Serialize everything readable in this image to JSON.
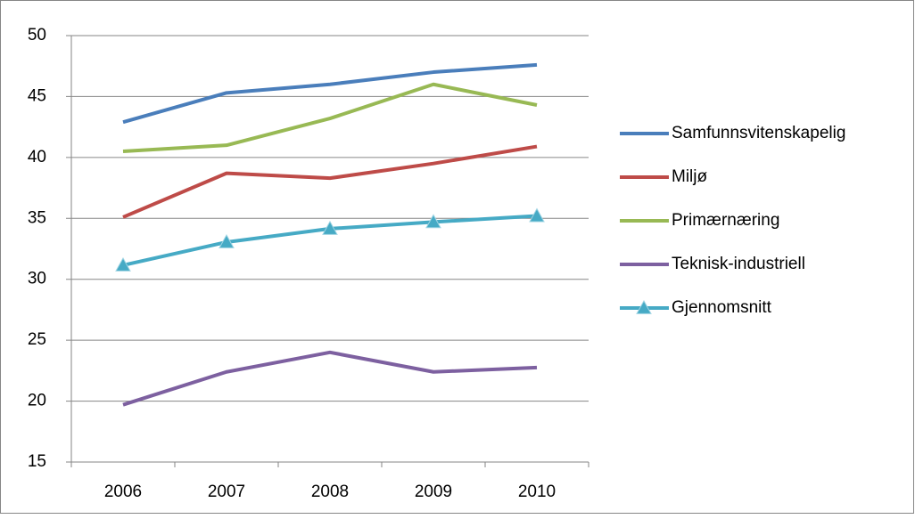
{
  "chart_data": {
    "type": "line",
    "categories": [
      "2006",
      "2007",
      "2008",
      "2009",
      "2010"
    ],
    "series": [
      {
        "name": "Samfunnsvitenskapelig",
        "color": "#4a7ebb",
        "values": [
          42.9,
          45.3,
          46.0,
          47.0,
          47.6
        ]
      },
      {
        "name": "Miljø",
        "color": "#be4b48",
        "values": [
          35.1,
          38.7,
          38.3,
          39.5,
          40.9
        ]
      },
      {
        "name": "Primærnæring",
        "color": "#98b954",
        "values": [
          40.5,
          41.0,
          43.2,
          46.0,
          44.3
        ]
      },
      {
        "name": "Teknisk-industriell",
        "color": "#7d60a0",
        "values": [
          19.7,
          22.4,
          24.0,
          22.4,
          22.75
        ]
      },
      {
        "name": "Gjennomsnitt",
        "color": "#46aac5",
        "marker": "triangle",
        "values": [
          31.15,
          33.05,
          34.15,
          34.7,
          35.2
        ]
      }
    ],
    "ylim": [
      15,
      50
    ],
    "yticks": [
      15,
      20,
      25,
      30,
      35,
      40,
      45,
      50
    ],
    "grid": true,
    "legend": "right"
  }
}
